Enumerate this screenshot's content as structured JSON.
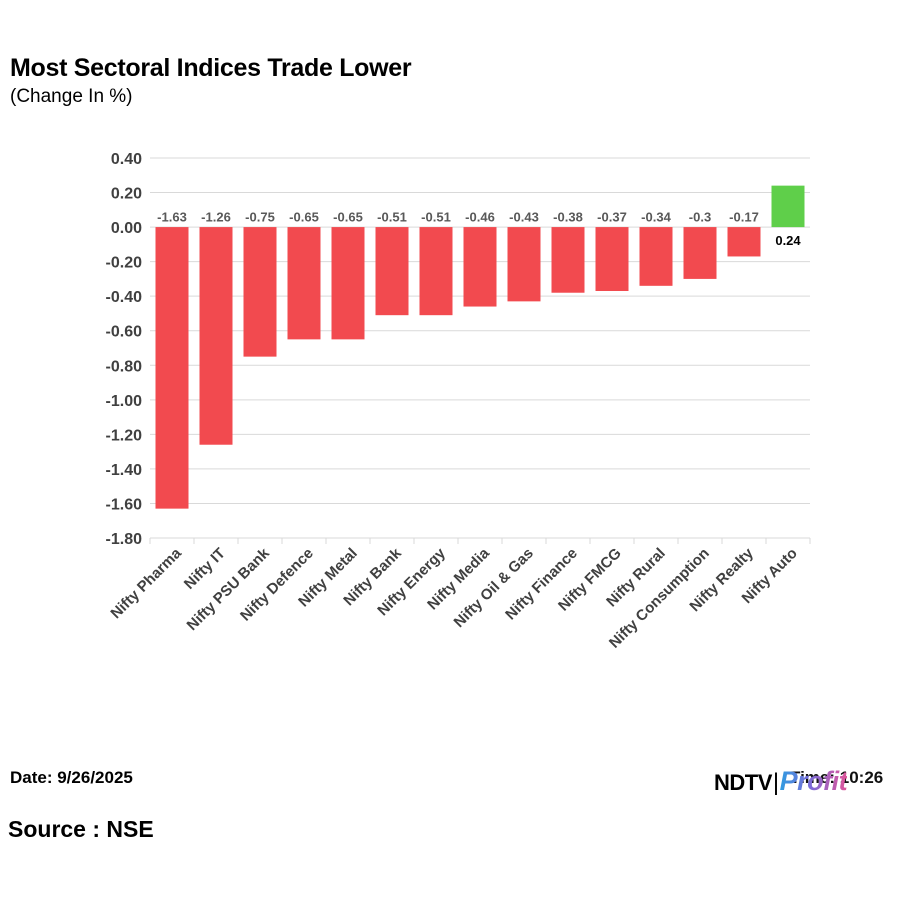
{
  "header": {
    "title": "Most Sectoral Indices Trade Lower",
    "subtitle": "(Change In %)"
  },
  "footer": {
    "date": "Date: 9/26/2025",
    "time": "Time: 10:26",
    "source": "Source : NSE",
    "logo_ndtv": "NDTV",
    "logo_sep": "|",
    "logo_profit": "Profit"
  },
  "colors": {
    "negative": "#f24a4f",
    "positive": "#5fcf4a",
    "grid": "#d9d9d9",
    "axis_text": "#404040",
    "neg_label": "#595959",
    "pos_label": "#000000"
  },
  "chart_data": {
    "type": "bar",
    "title": "Most Sectoral Indices Trade Lower",
    "subtitle": "(Change In %)",
    "xlabel": "",
    "ylabel": "",
    "ylim": [
      -1.8,
      0.4
    ],
    "yticks": [
      0.4,
      0.2,
      0.0,
      -0.2,
      -0.4,
      -0.6,
      -0.8,
      -1.0,
      -1.2,
      -1.4,
      -1.6,
      -1.8
    ],
    "ytick_labels": [
      "0.40",
      "0.20",
      "0.00",
      "-0.20",
      "-0.40",
      "-0.60",
      "-0.80",
      "-1.00",
      "-1.20",
      "-1.40",
      "-1.60",
      "-1.80"
    ],
    "grid": true,
    "categories": [
      "Nifty Pharma",
      "Nifty IT",
      "Nifty PSU Bank",
      "Nifty Defence",
      "Nifty Metal",
      "Nifty Bank",
      "Nifty Energy",
      "Nifty Media",
      "Nifty Oil & Gas",
      "Nifty Finance",
      "Nifty FMCG",
      "Nifty Rural",
      "Nifty Consumption",
      "Nifty Realty",
      "Nifty Auto"
    ],
    "values": [
      -1.63,
      -1.26,
      -0.75,
      -0.65,
      -0.65,
      -0.51,
      -0.51,
      -0.46,
      -0.43,
      -0.38,
      -0.37,
      -0.34,
      -0.3,
      -0.17,
      0.24
    ],
    "labels": [
      "-1.63",
      "-1.26",
      "-0.75",
      "-0.65",
      "-0.65",
      "-0.51",
      "-0.51",
      "-0.46",
      "-0.43",
      "-0.38",
      "-0.37",
      "-0.34",
      "-0.3",
      "-0.17",
      "0.24"
    ]
  }
}
